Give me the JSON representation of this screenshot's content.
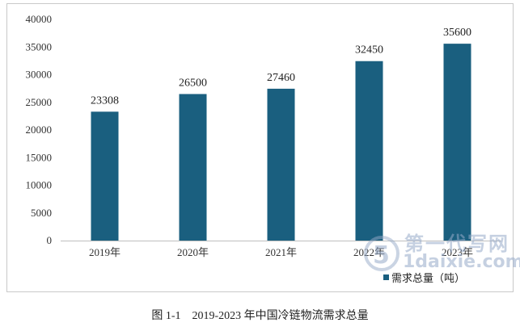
{
  "chart_data": {
    "type": "bar",
    "categories": [
      "2019年",
      "2020年",
      "2021年",
      "2022年",
      "2023年"
    ],
    "values": [
      23308,
      26500,
      27460,
      32450,
      35600
    ],
    "data_labels": [
      "23308",
      "26500",
      "27460",
      "32450",
      "35600"
    ],
    "ylim": [
      0,
      40000
    ],
    "yticks": [
      0,
      5000,
      10000,
      15000,
      20000,
      25000,
      30000,
      35000,
      40000
    ],
    "grid": false,
    "legend": {
      "position": "bottom-right",
      "entries": [
        "需求总量（吨）"
      ]
    },
    "bar_color": "#1a5f7f"
  },
  "caption": "图 1-1　2019-2023 年中国冷链物流需求总量",
  "watermark": {
    "line1": "第一代写网",
    "line2": "1daixie.com"
  }
}
